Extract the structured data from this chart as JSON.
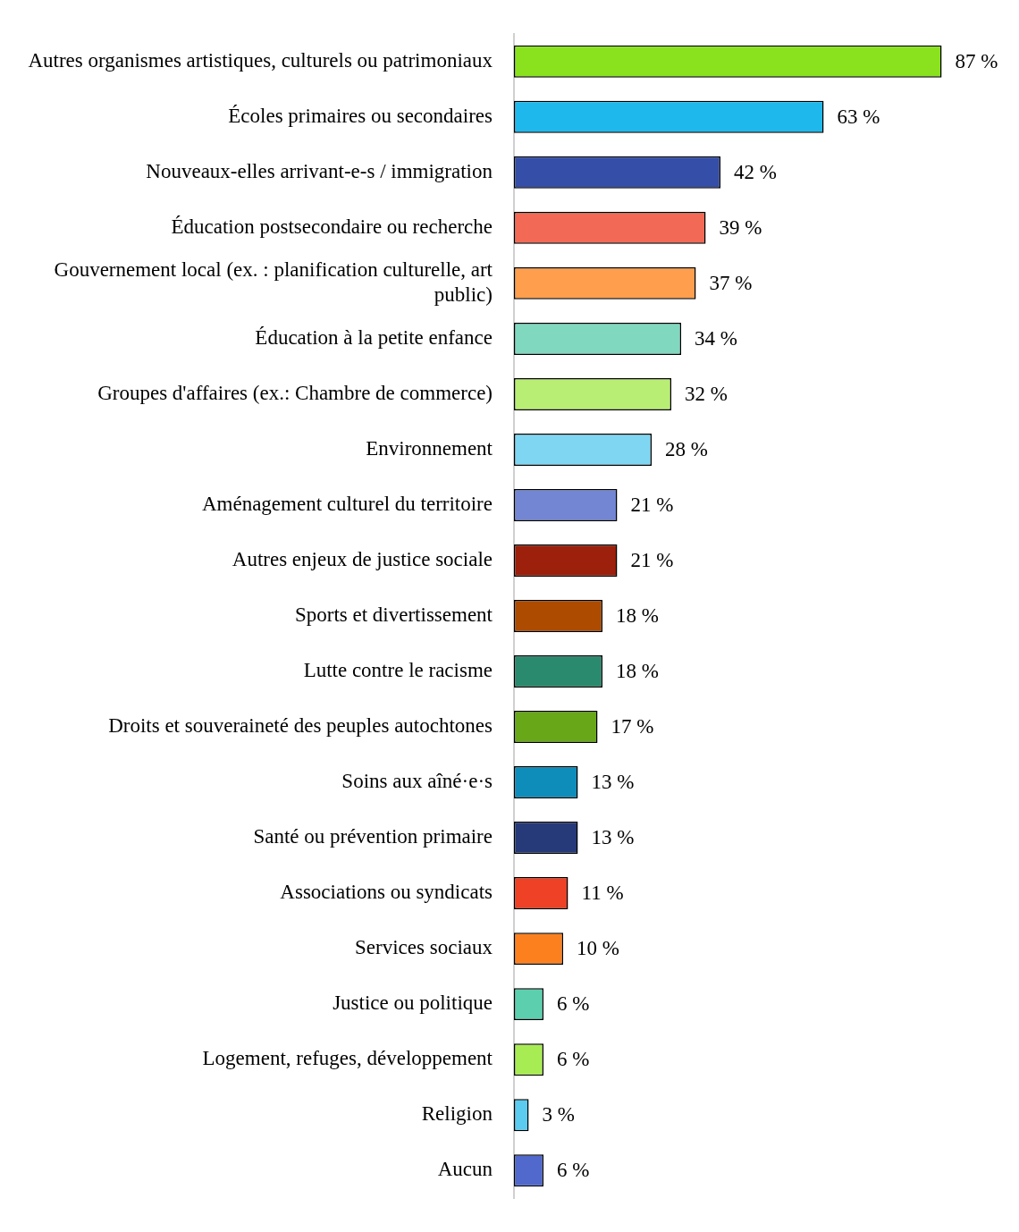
{
  "chart_data": {
    "type": "bar",
    "orientation": "horizontal",
    "categories": [
      "Autres organismes artistiques, culturels ou patrimoniaux",
      "Écoles primaires ou secondaires",
      "Nouveaux-elles arrivant-e-s / immigration",
      "Éducation postsecondaire ou recherche",
      "Gouvernement local (ex. : planification culturelle, art public)",
      "Éducation à la petite enfance",
      "Groupes d'affaires (ex.: Chambre de commerce)",
      "Environnement",
      "Aménagement culturel du territoire",
      "Autres enjeux de justice sociale",
      "Sports et divertissement",
      "Lutte contre le racisme",
      "Droits et souveraineté des peuples autochtones",
      "Soins aux aîné·e·s",
      "Santé ou prévention primaire",
      "Associations ou syndicats",
      "Services sociaux",
      "Justice ou politique",
      "Logement, refuges, développement",
      "Religion",
      "Aucun"
    ],
    "values": [
      87,
      63,
      42,
      39,
      37,
      34,
      32,
      28,
      21,
      21,
      18,
      18,
      17,
      13,
      13,
      11,
      10,
      6,
      6,
      3,
      6
    ],
    "value_labels": [
      "87 %",
      "63 %",
      "42 %",
      "39 %",
      "37 %",
      "34 %",
      "32 %",
      "28 %",
      "21 %",
      "21 %",
      "18 %",
      "18 %",
      "17 %",
      "13 %",
      "13 %",
      "11 %",
      "10 %",
      "6 %",
      "6 %",
      "3 %",
      "6 %"
    ],
    "colors": [
      "#8ae21e",
      "#1fb8ec",
      "#354ea8",
      "#f26a55",
      "#ff9e4d",
      "#80d8bf",
      "#b8ee73",
      "#7fd6f2",
      "#7386d3",
      "#9c200c",
      "#ad4b00",
      "#2a8a6e",
      "#68a818",
      "#0e8dbb",
      "#263a7a",
      "#ee4125",
      "#fd801f",
      "#5bcfae",
      "#a8ec53",
      "#5ccbf0",
      "#5168cc"
    ]
  }
}
